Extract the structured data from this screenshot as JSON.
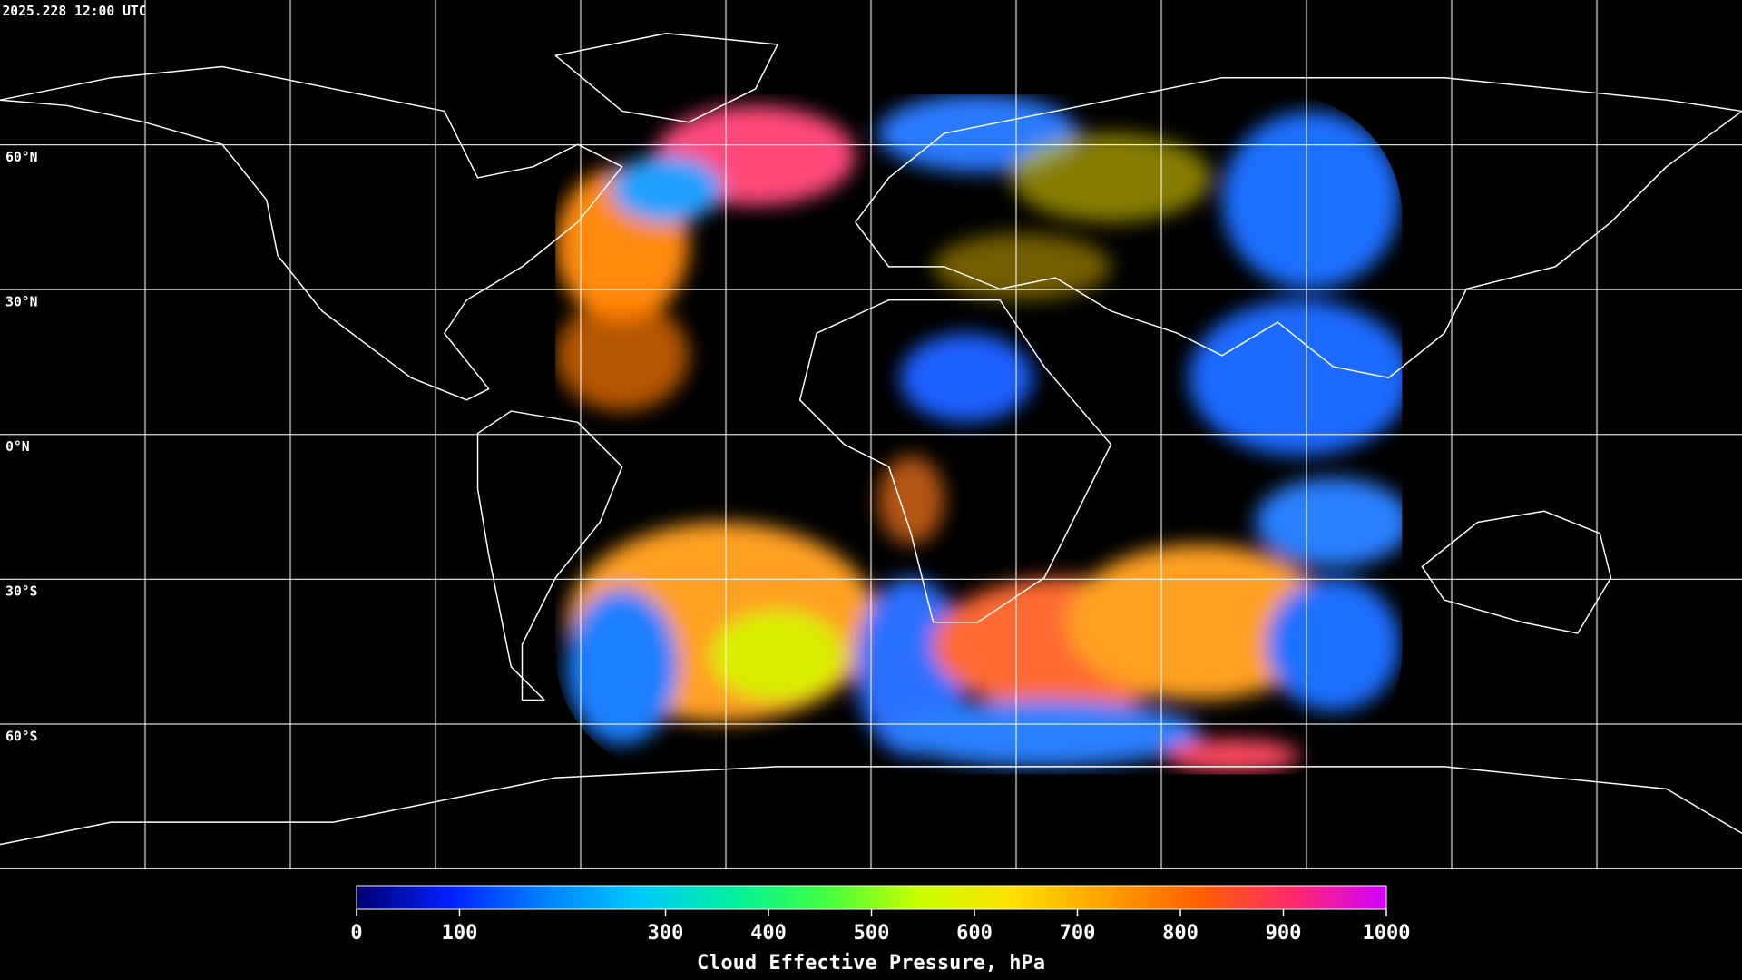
{
  "header": {
    "timestamp": "2025.228 12:00 UTC"
  },
  "map": {
    "lat_labels": [
      "60°N",
      "30°N",
      "0°N",
      "30°S",
      "60°S"
    ]
  },
  "colorbar": {
    "label": "Cloud Effective Pressure, hPa",
    "range": [
      0,
      1000
    ],
    "ticks": [
      0,
      100,
      300,
      400,
      500,
      600,
      700,
      800,
      900,
      1000
    ],
    "colors": [
      "#00006e",
      "#0020ff",
      "#0080ff",
      "#00c8ff",
      "#00f0a0",
      "#40ff40",
      "#c8ff00",
      "#ffe000",
      "#ffa000",
      "#ff6000",
      "#ff2a6a",
      "#d000ff"
    ]
  }
}
